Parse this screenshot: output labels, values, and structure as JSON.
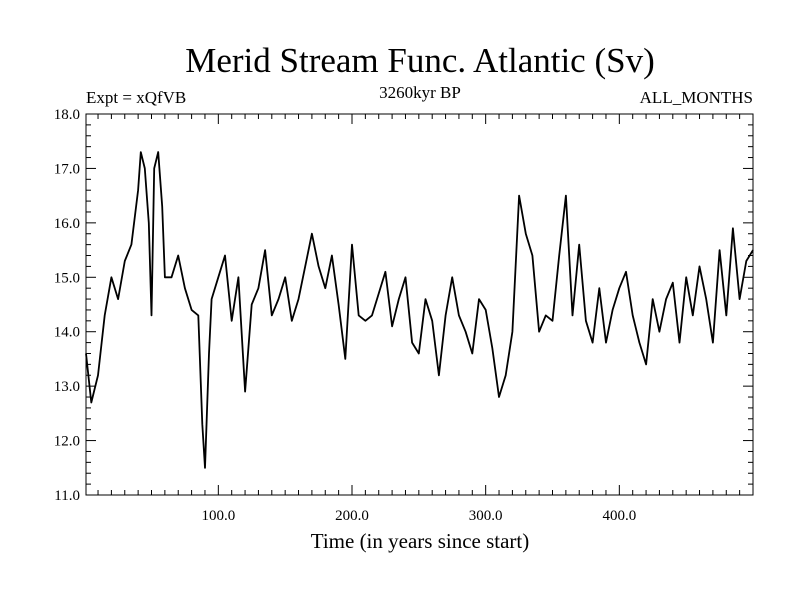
{
  "chart_data": {
    "type": "line",
    "title": "Merid Stream Func. Atlantic (Sv)",
    "left_header": "Expt = xQfVB",
    "center_header": "3260kyr BP",
    "right_header": "ALL_MONTHS",
    "xlabel": "Time (in years since start)",
    "ylabel": "",
    "xlim": [
      1,
      500
    ],
    "ylim": [
      11.0,
      18.0
    ],
    "xticks": [
      100,
      200,
      300,
      400
    ],
    "xtick_labels": [
      "100.0",
      "200.0",
      "300.0",
      "400.0"
    ],
    "yticks": [
      11,
      12,
      13,
      14,
      15,
      16,
      17,
      18
    ],
    "ytick_labels": [
      "11.0",
      "12.0",
      "13.0",
      "14.0",
      "15.0",
      "16.0",
      "17.0",
      "18.0"
    ],
    "line_color": "#000000",
    "series": [
      {
        "name": "Merid Stream Func. Atlantic",
        "x": [
          1,
          5,
          10,
          15,
          20,
          25,
          30,
          35,
          40,
          42,
          45,
          48,
          50,
          52,
          55,
          58,
          60,
          65,
          70,
          75,
          80,
          85,
          88,
          90,
          93,
          95,
          100,
          105,
          110,
          115,
          120,
          125,
          130,
          135,
          140,
          145,
          150,
          155,
          160,
          165,
          170,
          175,
          180,
          185,
          190,
          195,
          200,
          205,
          210,
          215,
          220,
          225,
          230,
          235,
          240,
          245,
          250,
          255,
          260,
          265,
          270,
          275,
          280,
          285,
          290,
          295,
          300,
          305,
          310,
          315,
          320,
          325,
          330,
          335,
          340,
          345,
          350,
          355,
          360,
          365,
          370,
          375,
          380,
          385,
          390,
          395,
          400,
          405,
          410,
          415,
          420,
          425,
          430,
          435,
          440,
          445,
          450,
          455,
          460,
          465,
          470,
          475,
          480,
          485,
          490,
          495,
          500
        ],
        "y": [
          13.6,
          12.7,
          13.2,
          14.3,
          15.0,
          14.6,
          15.3,
          15.6,
          16.6,
          17.3,
          17.0,
          16.0,
          14.3,
          17.0,
          17.3,
          16.3,
          15.0,
          15.0,
          15.4,
          14.8,
          14.4,
          14.3,
          12.3,
          11.5,
          13.6,
          14.6,
          15.0,
          15.4,
          14.2,
          15.0,
          12.9,
          14.5,
          14.8,
          15.5,
          14.3,
          14.6,
          15.0,
          14.2,
          14.6,
          15.2,
          15.8,
          15.2,
          14.8,
          15.4,
          14.5,
          13.5,
          15.6,
          14.3,
          14.2,
          14.3,
          14.7,
          15.1,
          14.1,
          14.6,
          15.0,
          13.8,
          13.6,
          14.6,
          14.2,
          13.2,
          14.3,
          15.0,
          14.3,
          14.0,
          13.6,
          14.6,
          14.4,
          13.7,
          12.8,
          13.2,
          14.0,
          16.5,
          15.8,
          15.4,
          14.0,
          14.3,
          14.2,
          15.4,
          16.5,
          14.3,
          15.6,
          14.2,
          13.8,
          14.8,
          13.8,
          14.4,
          14.8,
          15.1,
          14.3,
          13.8,
          13.4,
          14.6,
          14.0,
          14.6,
          14.9,
          13.8,
          15.0,
          14.3,
          15.2,
          14.6,
          13.8,
          15.5,
          14.3,
          15.9,
          14.6,
          15.3,
          15.5
        ]
      }
    ]
  }
}
